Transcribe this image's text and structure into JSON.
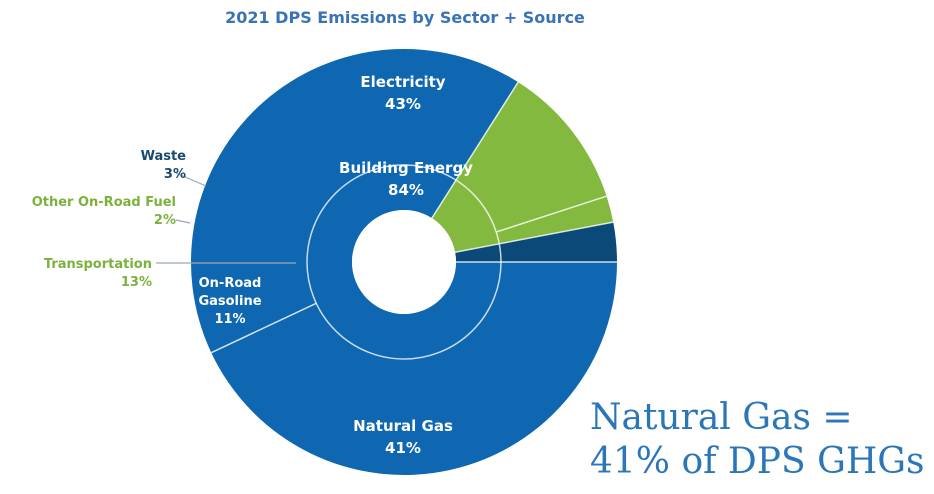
{
  "chart_data": {
    "type": "pie",
    "subtype": "nested-donut",
    "title": "2021 DPS Emissions by Sector + Source",
    "legend": "none",
    "inner_ring": {
      "name": "Sector",
      "slices": [
        {
          "label": "Building Energy",
          "value_label": "84%",
          "value": 84,
          "color": "#0f67b1"
        },
        {
          "label": "Transportation",
          "value_label": "13%",
          "value": 13,
          "color": "#84b93f"
        },
        {
          "label": "Waste",
          "value_label": "3%",
          "value": 3,
          "color": "#0b4a78"
        }
      ]
    },
    "outer_ring": {
      "name": "Source",
      "slices": [
        {
          "label": "Electricity",
          "value_label": "43%",
          "value": 43,
          "color": "#0f67b1"
        },
        {
          "label": "Natural Gas",
          "value_label": "41%",
          "value": 41,
          "color": "#0f67b1"
        },
        {
          "label": "On-Road Gasoline",
          "value_label": "11%",
          "value": 11,
          "color": "#84b93f"
        },
        {
          "label": "Other On-Road Fuel",
          "value_label": "2%",
          "value": 2,
          "color": "#84b93f"
        },
        {
          "label": "Waste",
          "value_label": "3%",
          "value": 3,
          "color": "#0b4a78"
        }
      ]
    }
  },
  "colors": {
    "title": "#3a73b5",
    "blue": "#0f67b1",
    "green": "#84b93f",
    "navy": "#0b4a78",
    "green_text": "#7ab23c",
    "navy_text": "#174a73",
    "callout": "#2a76b9"
  },
  "callout": {
    "line1": "Natural Gas =",
    "line2": "41% of DPS GHGs"
  }
}
